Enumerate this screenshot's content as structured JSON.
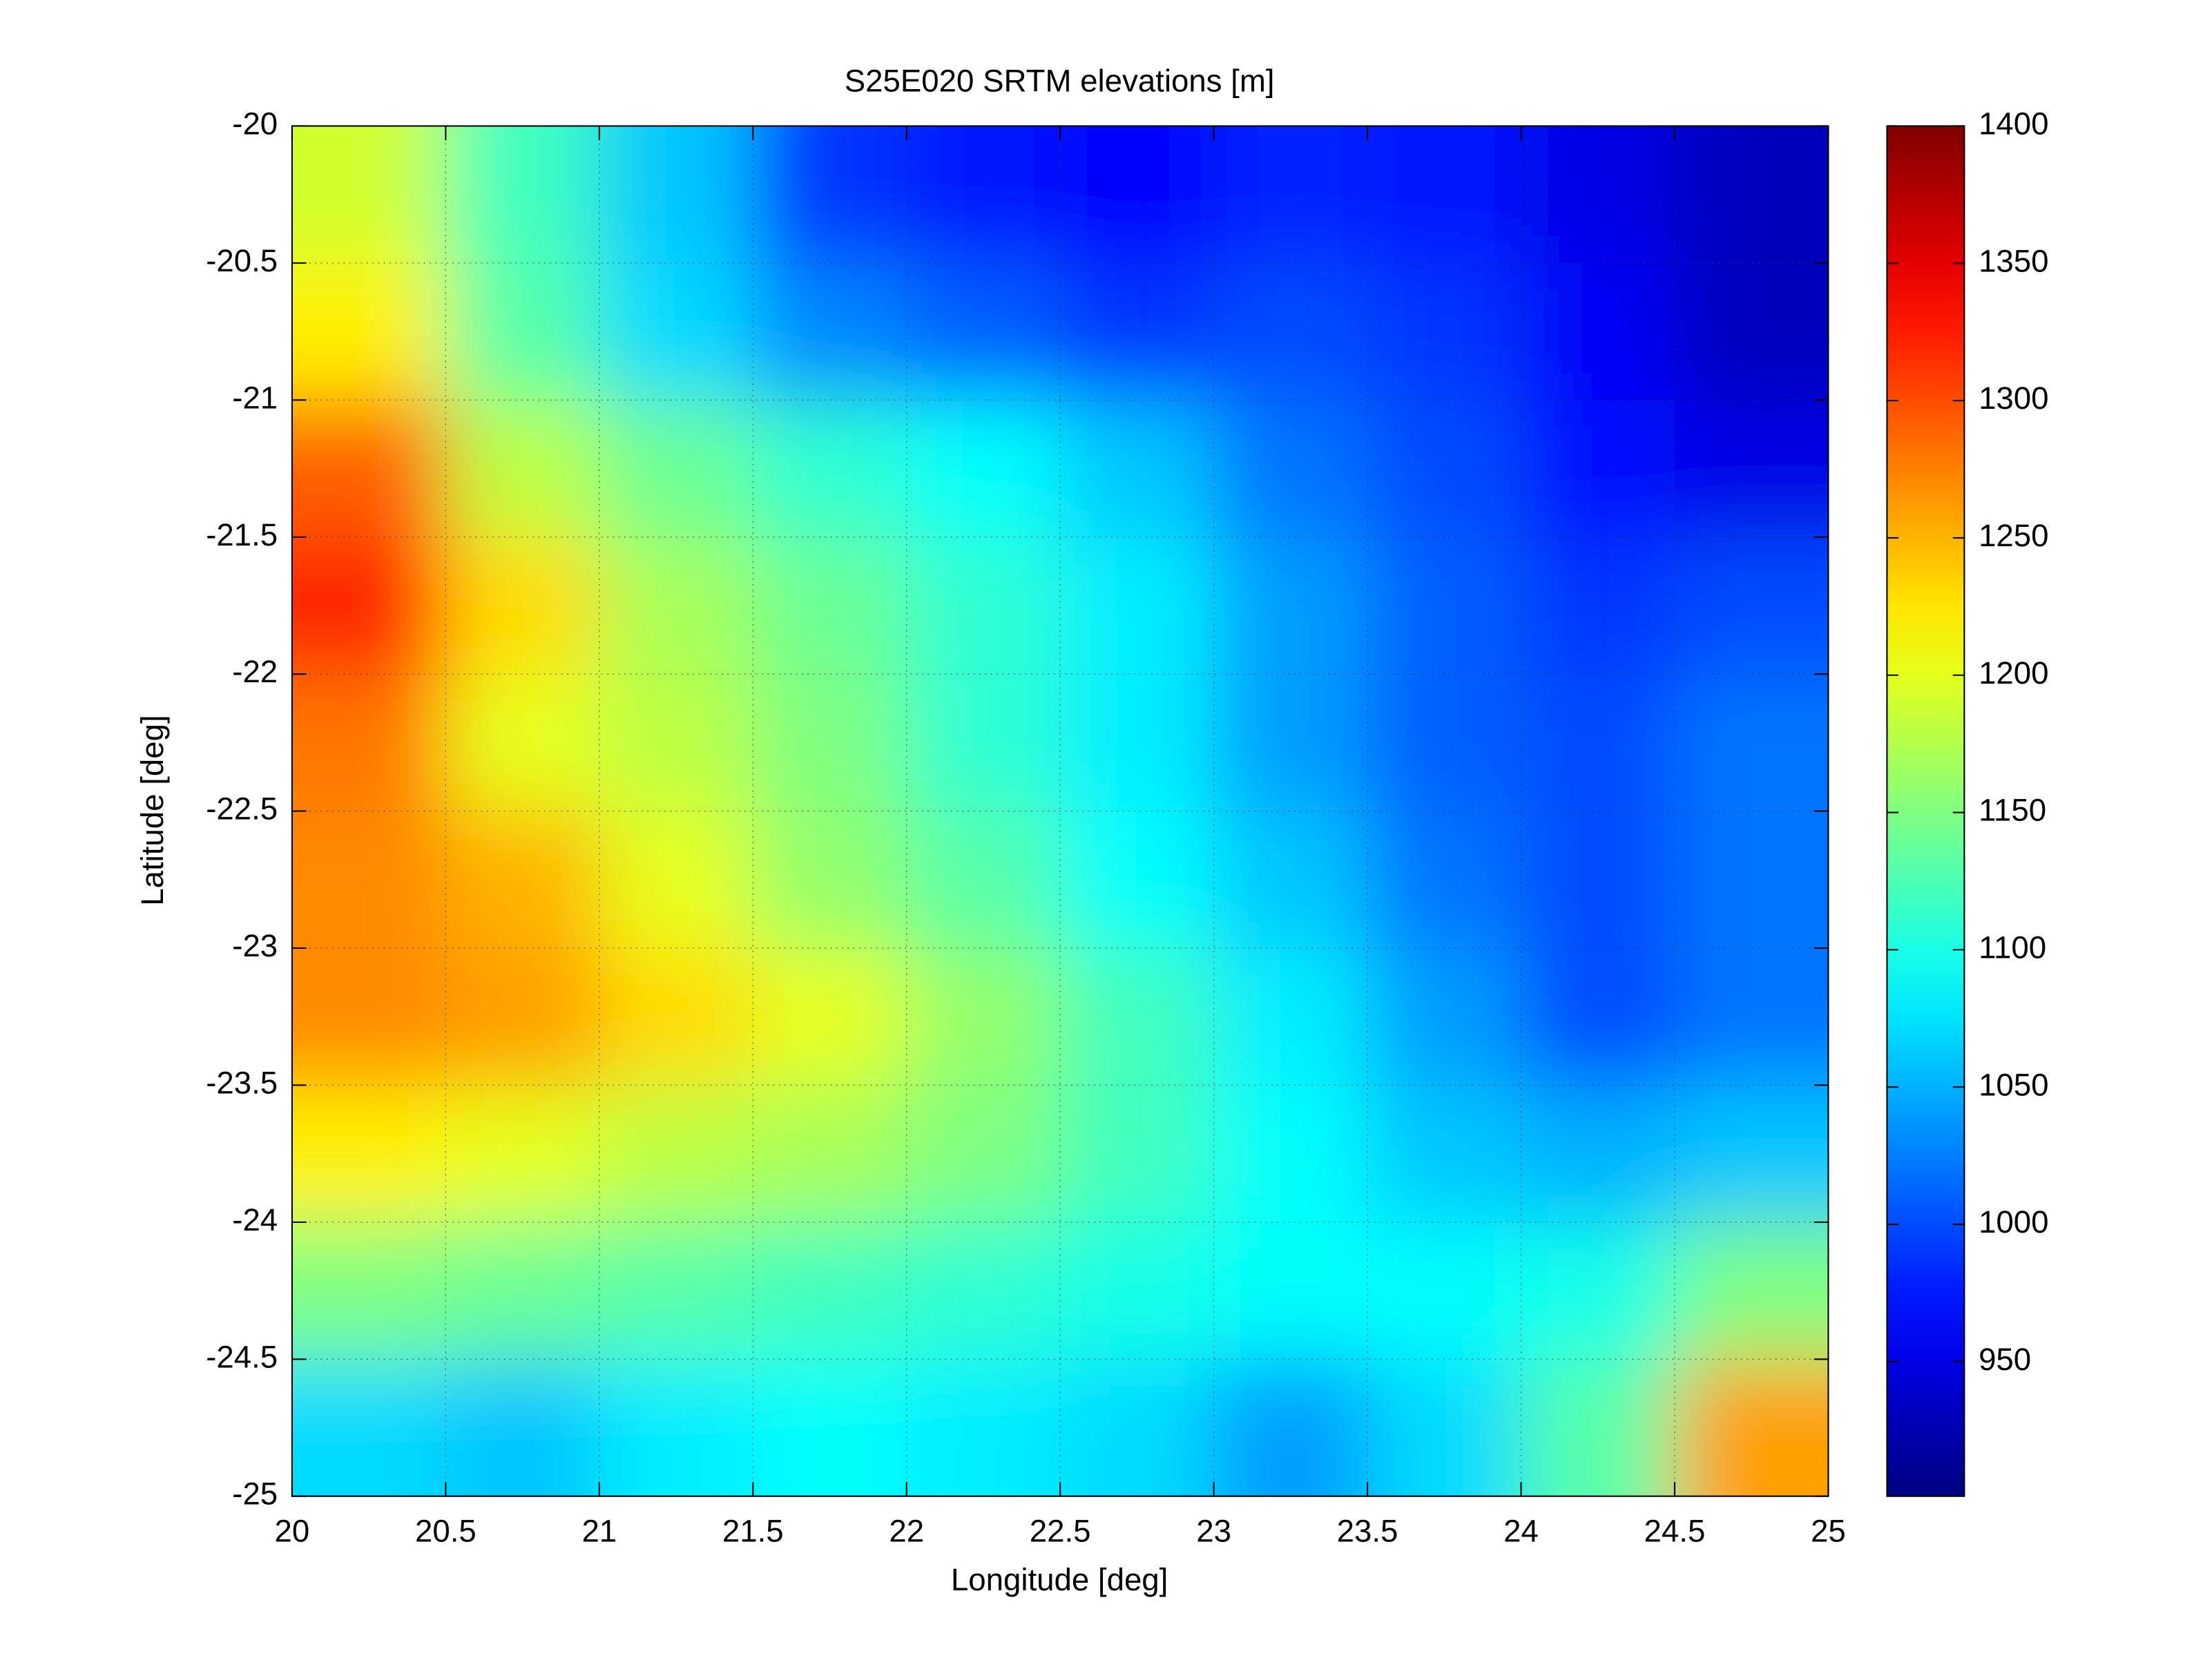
{
  "chart_data": {
    "type": "heatmap",
    "title": "S25E020 SRTM elevations [m]",
    "x_label": "Longitude [deg]",
    "y_label": "Latitude [deg]",
    "xlim": [
      20,
      25
    ],
    "ylim": [
      -25,
      -20
    ],
    "xticks": [
      20,
      20.5,
      21,
      21.5,
      22,
      22.5,
      23,
      23.5,
      24,
      24.5,
      25
    ],
    "yticks": [
      -25,
      -24.5,
      -24,
      -23.5,
      -23,
      -22.5,
      -22,
      -21.5,
      -21,
      -20.5,
      -20
    ],
    "grid": true,
    "colormap": "jet",
    "clim": [
      901,
      1400
    ],
    "colorbar_ticks": [
      950,
      1000,
      1050,
      1100,
      1150,
      1200,
      1250,
      1300,
      1350,
      1400
    ],
    "z": [
      [
        1190,
        1120,
        1060,
        990,
        975,
        965,
        980,
        975,
        950,
        930
      ],
      [
        1220,
        1130,
        1070,
        1030,
        1010,
        990,
        1000,
        990,
        960,
        930
      ],
      [
        1290,
        1180,
        1140,
        1110,
        1090,
        1060,
        1020,
        1000,
        970,
        950
      ],
      [
        1320,
        1230,
        1170,
        1140,
        1110,
        1080,
        1040,
        1010,
        990,
        1000
      ],
      [
        1280,
        1200,
        1180,
        1150,
        1110,
        1080,
        1040,
        1010,
        1000,
        1020
      ],
      [
        1270,
        1250,
        1200,
        1160,
        1130,
        1090,
        1060,
        1020,
        1000,
        1020
      ],
      [
        1270,
        1260,
        1230,
        1200,
        1160,
        1120,
        1080,
        1040,
        1000,
        1020
      ],
      [
        1220,
        1200,
        1180,
        1170,
        1150,
        1120,
        1090,
        1060,
        1050,
        1060
      ],
      [
        1150,
        1140,
        1130,
        1120,
        1110,
        1100,
        1090,
        1090,
        1100,
        1150
      ],
      [
        1070,
        1060,
        1080,
        1090,
        1080,
        1070,
        1040,
        1070,
        1130,
        1260
      ]
    ]
  }
}
